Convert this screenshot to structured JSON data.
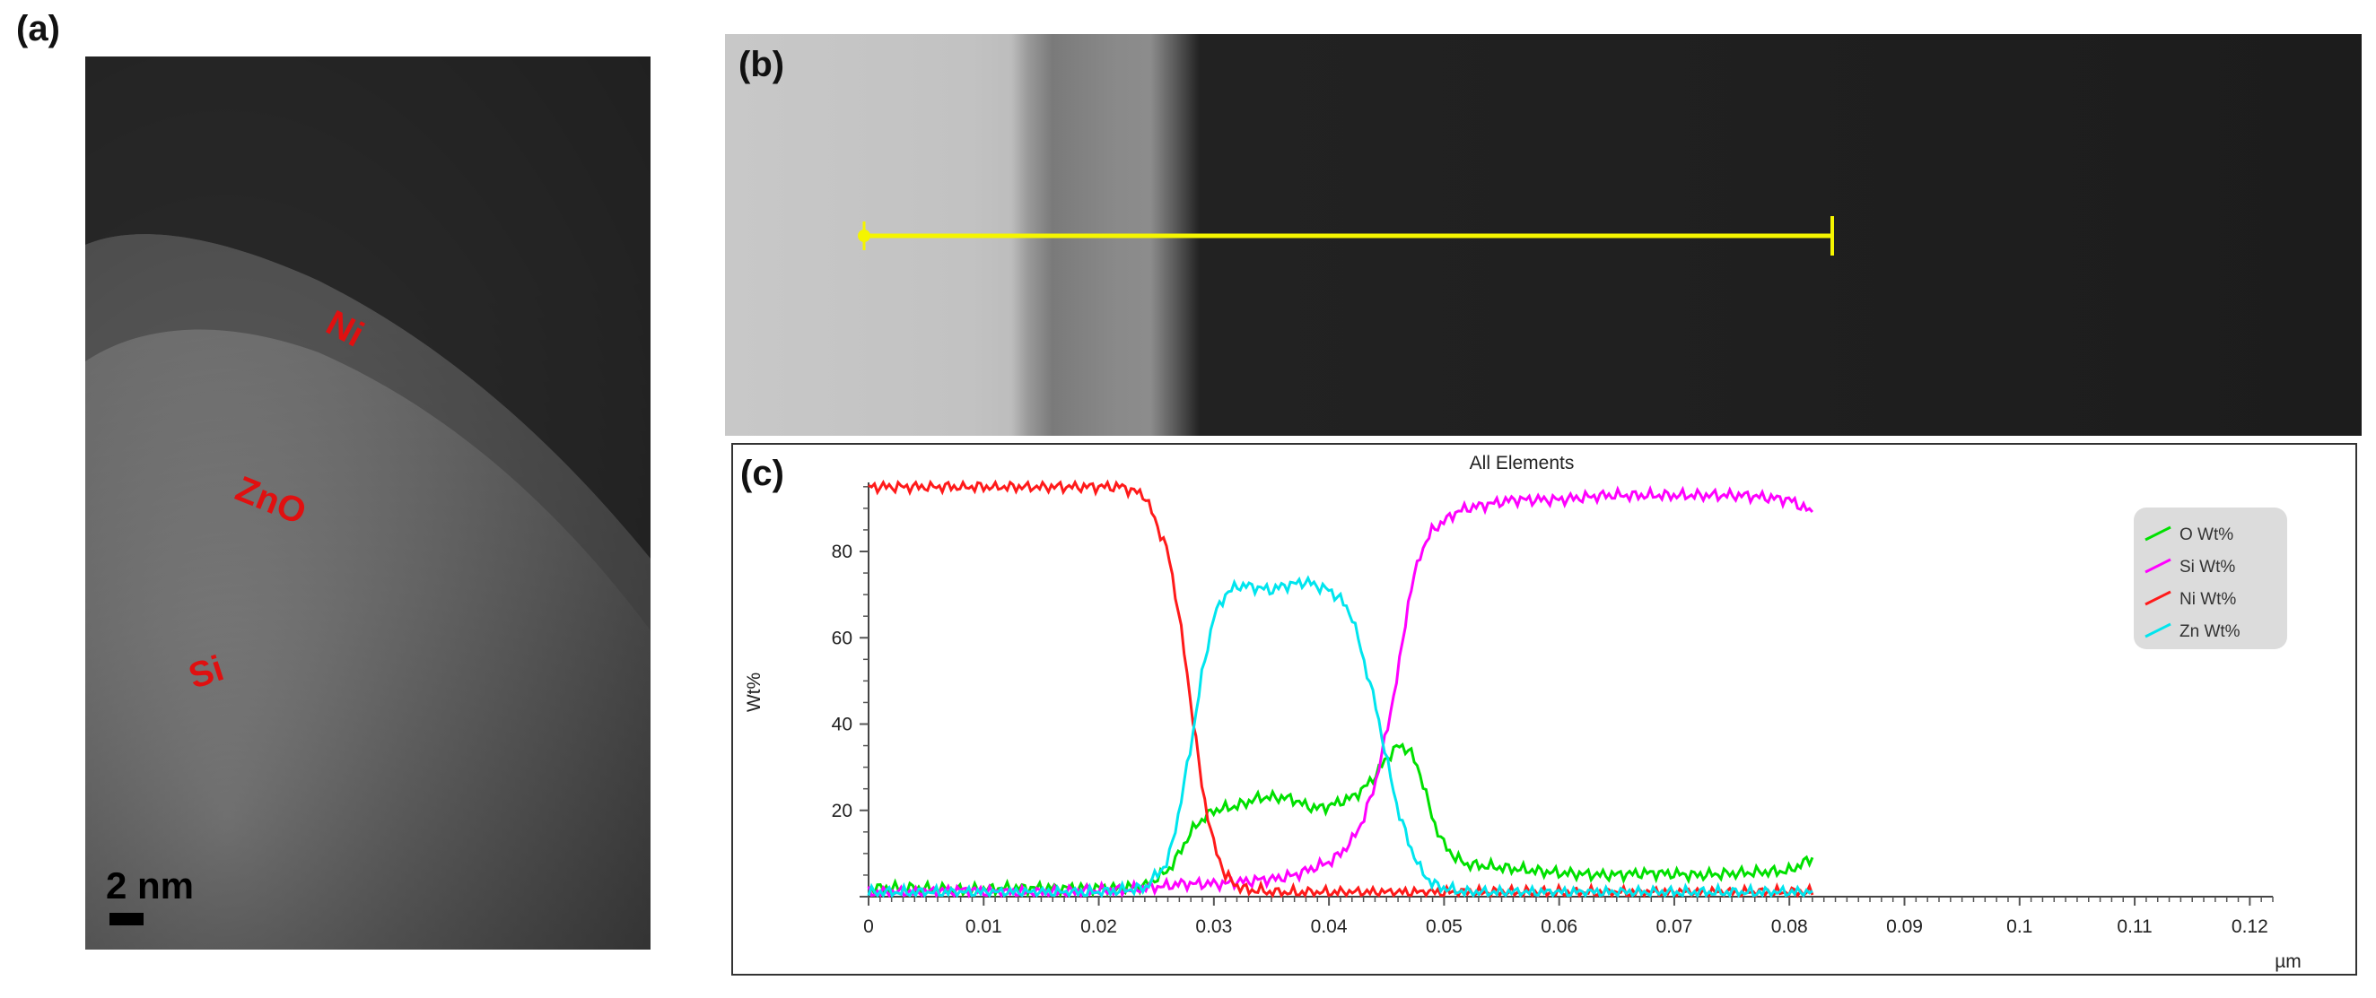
{
  "figure": {
    "panel_a": {
      "letter": "(a)",
      "labels": {
        "ni": "Ni",
        "zno": "ZnO",
        "si": "Si"
      },
      "scale_bar": "2 nm"
    },
    "panel_b": {
      "letter": "(b)",
      "line_color": "#f5f500"
    },
    "panel_c": {
      "letter": "(c)"
    }
  },
  "chart_data": {
    "type": "line",
    "title": "All Elements",
    "xlabel": "µm",
    "ylabel": "Wt%",
    "xlim": [
      0,
      0.122
    ],
    "ylim": [
      0,
      96
    ],
    "xticks": [
      "0",
      "0.01",
      "0.02",
      "0.03",
      "0.04",
      "0.05",
      "0.06",
      "0.07",
      "0.08",
      "0.09",
      "0.1",
      "0.11",
      "0.12"
    ],
    "yticks": [
      "20",
      "40",
      "60",
      "80"
    ],
    "legend_position": "top-right",
    "x": [
      0,
      0.004,
      0.008,
      0.012,
      0.016,
      0.02,
      0.022,
      0.024,
      0.026,
      0.027,
      0.028,
      0.029,
      0.03,
      0.031,
      0.032,
      0.033,
      0.034,
      0.035,
      0.036,
      0.037,
      0.038,
      0.039,
      0.04,
      0.041,
      0.042,
      0.043,
      0.044,
      0.045,
      0.046,
      0.047,
      0.048,
      0.049,
      0.05,
      0.051,
      0.052,
      0.054,
      0.056,
      0.058,
      0.06,
      0.064,
      0.068,
      0.072,
      0.076,
      0.08,
      0.082
    ],
    "series": [
      {
        "name": "O Wt%",
        "color": "#00e000",
        "values": [
          2,
          2,
          1.5,
          2,
          2,
          2,
          2,
          2.5,
          6,
          10,
          15,
          18,
          20,
          20.5,
          21,
          22,
          23,
          23,
          23,
          22.5,
          21,
          20.5,
          21,
          22,
          23,
          25,
          28,
          32,
          35,
          34,
          28,
          18,
          12,
          9,
          7.5,
          7,
          6.5,
          6,
          5.5,
          5,
          5.5,
          5,
          5.5,
          6,
          9
        ]
      },
      {
        "name": "Si Wt%",
        "color": "#ff00ff",
        "values": [
          1,
          1,
          1.5,
          1,
          1,
          1.5,
          1.5,
          2,
          2.5,
          3,
          3,
          3,
          3,
          3,
          3.5,
          3.5,
          4,
          4,
          4.5,
          5,
          6,
          7,
          8,
          10,
          13,
          18,
          26,
          38,
          52,
          70,
          80,
          85,
          87,
          89,
          90,
          91,
          92,
          92,
          92,
          93,
          93,
          93,
          93,
          92,
          89
        ]
      },
      {
        "name": "Ni Wt%",
        "color": "#ff1a1a",
        "values": [
          95,
          95,
          95,
          95,
          95,
          95,
          95,
          93,
          80,
          65,
          45,
          25,
          12,
          5,
          2.5,
          1.5,
          1.5,
          1,
          1,
          1,
          1,
          1,
          1,
          1,
          1,
          1,
          1,
          1,
          1,
          1,
          1,
          1,
          1,
          1,
          1,
          1,
          1,
          1,
          1,
          1,
          1,
          1,
          1,
          1,
          1
        ]
      },
      {
        "name": "Zn Wt%",
        "color": "#00e5ee",
        "values": [
          1,
          1,
          1,
          1,
          1,
          1,
          1.5,
          2,
          8,
          20,
          35,
          52,
          65,
          70,
          72,
          72,
          71.5,
          71,
          72,
          72.5,
          73,
          72,
          71,
          69,
          65,
          55,
          45,
          32,
          20,
          12,
          6,
          3,
          2,
          1.5,
          1,
          1,
          1,
          1,
          1,
          1,
          1,
          1,
          1,
          1,
          1
        ]
      }
    ]
  }
}
